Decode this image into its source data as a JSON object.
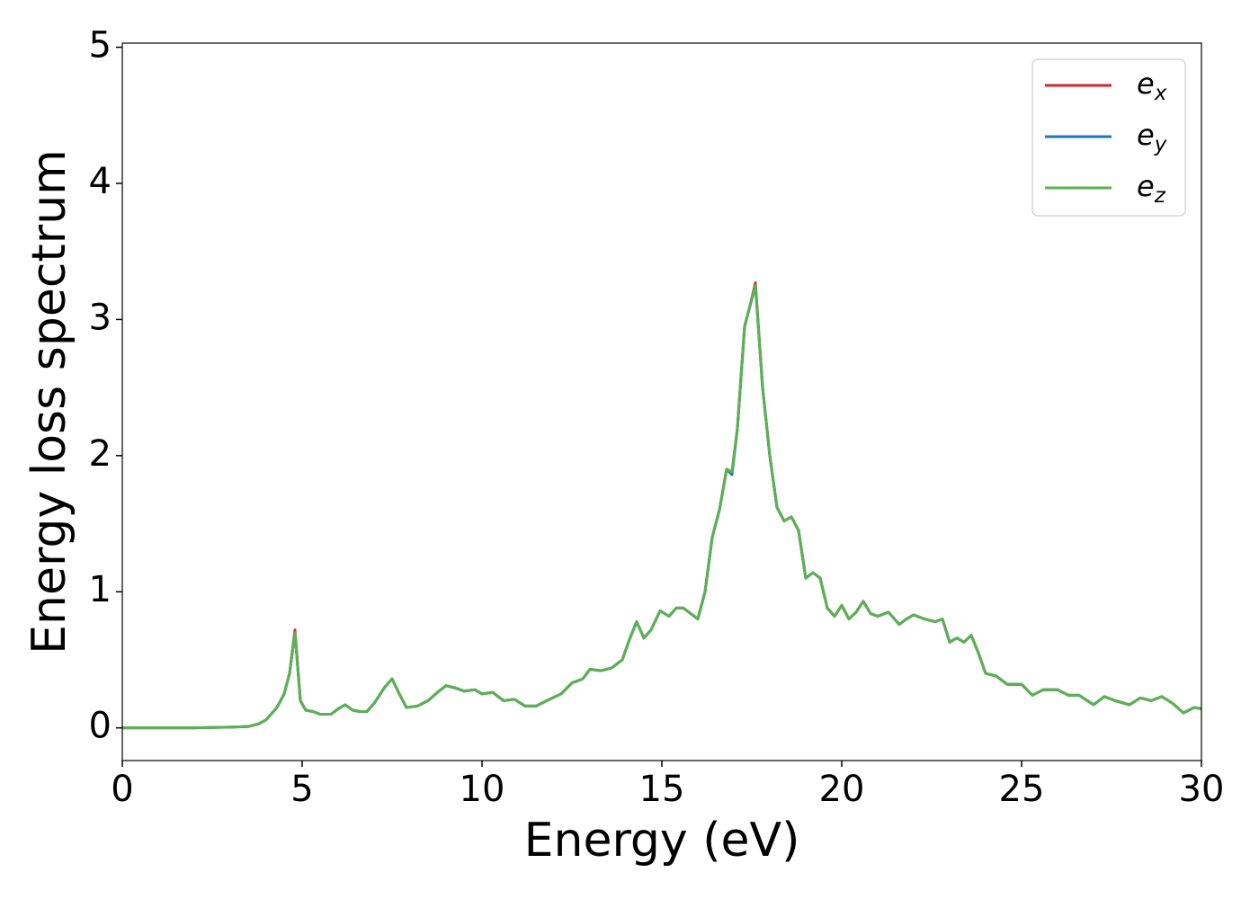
{
  "chart_data": {
    "type": "line",
    "xlabel": "Energy (eV)",
    "ylabel": "Energy loss spectrum",
    "x": [
      0,
      1,
      2,
      3,
      3.5,
      3.8,
      4,
      4.3,
      4.5,
      4.65,
      4.8,
      4.95,
      5.1,
      5.3,
      5.5,
      5.8,
      6,
      6.2,
      6.4,
      6.6,
      6.8,
      7,
      7.3,
      7.5,
      7.7,
      7.9,
      8.2,
      8.5,
      8.8,
      9,
      9.3,
      9.5,
      9.8,
      10,
      10.3,
      10.6,
      10.9,
      11.2,
      11.5,
      11.8,
      12.2,
      12.5,
      12.8,
      13,
      13.3,
      13.6,
      13.9,
      14.1,
      14.3,
      14.5,
      14.7,
      14.95,
      15.2,
      15.4,
      15.6,
      15.8,
      16,
      16.2,
      16.4,
      16.6,
      16.8,
      16.95,
      17.1,
      17.3,
      17.45,
      17.6,
      17.8,
      18,
      18.2,
      18.4,
      18.6,
      18.8,
      19,
      19.2,
      19.4,
      19.6,
      19.8,
      20,
      20.2,
      20.4,
      20.6,
      20.8,
      21,
      21.3,
      21.6,
      21.8,
      22,
      22.3,
      22.6,
      22.8,
      23,
      23.2,
      23.4,
      23.6,
      23.8,
      24,
      24.3,
      24.6,
      25,
      25.3,
      25.6,
      26,
      26.3,
      26.6,
      27,
      27.3,
      27.6,
      28,
      28.3,
      28.6,
      28.9,
      29.2,
      29.5,
      29.8,
      30
    ],
    "series": [
      {
        "name": "ex",
        "color": "#d62728",
        "values": [
          0,
          0,
          0,
          0.005,
          0.01,
          0.03,
          0.06,
          0.15,
          0.25,
          0.4,
          0.72,
          0.2,
          0.13,
          0.12,
          0.1,
          0.1,
          0.14,
          0.17,
          0.13,
          0.12,
          0.12,
          0.18,
          0.3,
          0.36,
          0.25,
          0.15,
          0.16,
          0.2,
          0.27,
          0.31,
          0.29,
          0.27,
          0.28,
          0.25,
          0.26,
          0.2,
          0.21,
          0.16,
          0.16,
          0.2,
          0.25,
          0.33,
          0.36,
          0.43,
          0.42,
          0.44,
          0.5,
          0.65,
          0.78,
          0.66,
          0.72,
          0.86,
          0.82,
          0.88,
          0.88,
          0.84,
          0.8,
          1.0,
          1.4,
          1.6,
          1.9,
          1.88,
          2.2,
          2.95,
          3.1,
          3.27,
          2.5,
          2.0,
          1.62,
          1.52,
          1.55,
          1.45,
          1.1,
          1.14,
          1.1,
          0.88,
          0.82,
          0.9,
          0.8,
          0.85,
          0.93,
          0.84,
          0.82,
          0.85,
          0.76,
          0.8,
          0.83,
          0.8,
          0.78,
          0.8,
          0.63,
          0.66,
          0.63,
          0.68,
          0.55,
          0.4,
          0.38,
          0.32,
          0.32,
          0.24,
          0.28,
          0.28,
          0.24,
          0.24,
          0.17,
          0.23,
          0.2,
          0.17,
          0.22,
          0.2,
          0.23,
          0.18,
          0.11,
          0.15,
          0.14
        ]
      },
      {
        "name": "ey",
        "color": "#1f77b4",
        "values": [
          0,
          0,
          0,
          0.005,
          0.01,
          0.03,
          0.06,
          0.15,
          0.25,
          0.4,
          0.7,
          0.2,
          0.13,
          0.12,
          0.1,
          0.1,
          0.14,
          0.17,
          0.13,
          0.12,
          0.12,
          0.18,
          0.3,
          0.36,
          0.25,
          0.15,
          0.16,
          0.2,
          0.27,
          0.31,
          0.29,
          0.27,
          0.28,
          0.25,
          0.26,
          0.2,
          0.21,
          0.16,
          0.16,
          0.2,
          0.25,
          0.33,
          0.36,
          0.43,
          0.42,
          0.44,
          0.5,
          0.65,
          0.78,
          0.66,
          0.72,
          0.86,
          0.82,
          0.88,
          0.88,
          0.84,
          0.8,
          1.0,
          1.4,
          1.6,
          1.9,
          1.86,
          2.2,
          2.95,
          3.1,
          3.25,
          2.5,
          2.0,
          1.62,
          1.52,
          1.55,
          1.45,
          1.1,
          1.14,
          1.1,
          0.88,
          0.82,
          0.9,
          0.8,
          0.85,
          0.93,
          0.84,
          0.82,
          0.85,
          0.76,
          0.8,
          0.83,
          0.8,
          0.78,
          0.8,
          0.63,
          0.66,
          0.63,
          0.68,
          0.55,
          0.4,
          0.38,
          0.32,
          0.32,
          0.24,
          0.28,
          0.28,
          0.24,
          0.24,
          0.17,
          0.23,
          0.2,
          0.17,
          0.22,
          0.2,
          0.23,
          0.18,
          0.11,
          0.15,
          0.14
        ]
      },
      {
        "name": "ez",
        "color": "#5ab251",
        "values": [
          0,
          0,
          0,
          0.005,
          0.01,
          0.03,
          0.06,
          0.15,
          0.25,
          0.4,
          0.7,
          0.2,
          0.13,
          0.12,
          0.1,
          0.1,
          0.14,
          0.17,
          0.13,
          0.12,
          0.12,
          0.18,
          0.3,
          0.36,
          0.25,
          0.15,
          0.16,
          0.2,
          0.27,
          0.31,
          0.29,
          0.27,
          0.28,
          0.25,
          0.26,
          0.2,
          0.21,
          0.16,
          0.16,
          0.2,
          0.25,
          0.33,
          0.36,
          0.43,
          0.42,
          0.44,
          0.5,
          0.65,
          0.78,
          0.66,
          0.72,
          0.86,
          0.82,
          0.88,
          0.88,
          0.84,
          0.8,
          1.0,
          1.4,
          1.6,
          1.9,
          1.88,
          2.2,
          2.95,
          3.1,
          3.25,
          2.5,
          2.0,
          1.62,
          1.52,
          1.55,
          1.45,
          1.1,
          1.14,
          1.1,
          0.88,
          0.82,
          0.9,
          0.8,
          0.85,
          0.93,
          0.84,
          0.82,
          0.85,
          0.76,
          0.8,
          0.83,
          0.8,
          0.78,
          0.8,
          0.63,
          0.66,
          0.63,
          0.68,
          0.55,
          0.4,
          0.38,
          0.32,
          0.32,
          0.24,
          0.28,
          0.28,
          0.24,
          0.24,
          0.17,
          0.23,
          0.2,
          0.17,
          0.22,
          0.2,
          0.23,
          0.18,
          0.11,
          0.15,
          0.14
        ]
      }
    ],
    "xlim": [
      0,
      30
    ],
    "xticks": [
      0,
      5,
      10,
      15,
      20,
      25,
      30
    ],
    "ylim": [
      -0.24,
      5.03
    ],
    "yticks": [
      0,
      1,
      2,
      3,
      4,
      5
    ],
    "grid": false,
    "legend": "upper right"
  }
}
